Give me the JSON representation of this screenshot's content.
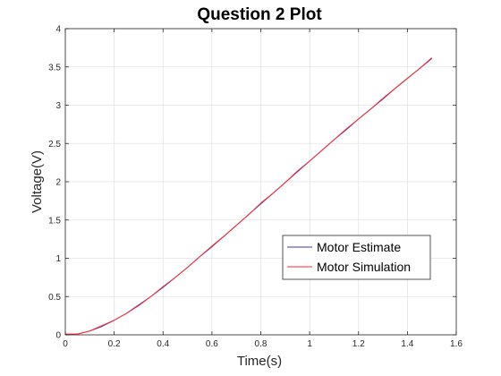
{
  "chart_data": {
    "type": "line",
    "title": "Question 2 Plot",
    "xlabel": "Time(s)",
    "ylabel": "Voltage(V)",
    "xlim": [
      0,
      1.6
    ],
    "ylim": [
      0,
      4
    ],
    "grid": true,
    "legend_placement": "bottom-right",
    "x_ticks": [
      "0",
      "0.2",
      "0.4",
      "0.6",
      "0.8",
      "1",
      "1.2",
      "1.4",
      "1.6"
    ],
    "y_ticks": [
      "0",
      "0.5",
      "1",
      "1.5",
      "2",
      "2.5",
      "3",
      "3.5",
      "4"
    ],
    "x": [
      0,
      0.05,
      0.1,
      0.15,
      0.2,
      0.25,
      0.3,
      0.35,
      0.4,
      0.45,
      0.5,
      0.55,
      0.6,
      0.65,
      0.7,
      0.75,
      0.8,
      0.85,
      0.9,
      0.95,
      1.0,
      1.05,
      1.1,
      1.15,
      1.2,
      1.25,
      1.3,
      1.35,
      1.4,
      1.45,
      1.5
    ],
    "series": [
      {
        "name": "Motor Estimate",
        "color": "#3a3ab8",
        "values": [
          0,
          0.01,
          0.05,
          0.11,
          0.19,
          0.28,
          0.39,
          0.5,
          0.62,
          0.75,
          0.88,
          1.02,
          1.15,
          1.29,
          1.43,
          1.57,
          1.71,
          1.85,
          1.99,
          2.13,
          2.27,
          2.41,
          2.55,
          2.68,
          2.82,
          2.95,
          3.08,
          3.22,
          3.35,
          3.48,
          3.61
        ]
      },
      {
        "name": "Motor Simulation",
        "color": "#ff2a2a",
        "values": [
          0.01,
          0.01,
          0.05,
          0.12,
          0.19,
          0.28,
          0.38,
          0.5,
          0.63,
          0.75,
          0.88,
          1.02,
          1.16,
          1.29,
          1.43,
          1.57,
          1.72,
          1.85,
          1.99,
          2.14,
          2.27,
          2.41,
          2.55,
          2.69,
          2.82,
          2.95,
          3.09,
          3.22,
          3.35,
          3.48,
          3.62
        ]
      }
    ]
  }
}
